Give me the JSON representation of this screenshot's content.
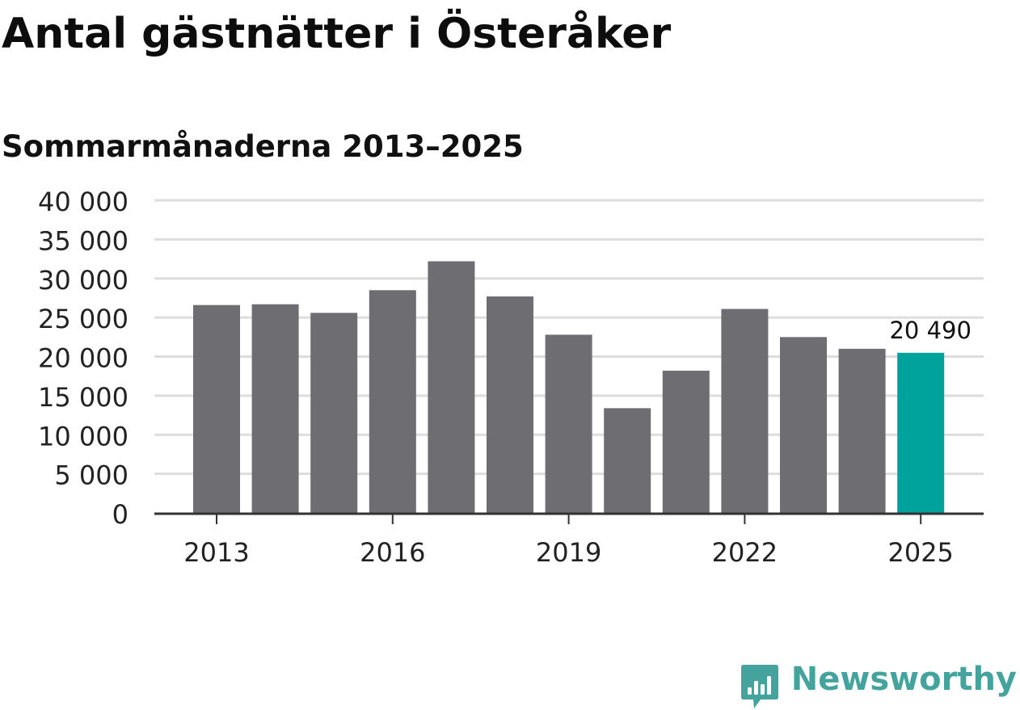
{
  "title": "Antal gästnätter i Österåker",
  "subtitle": "Sommarmånaderna 2013–2025",
  "logo": {
    "text": "Newsworthy",
    "icon": "newsworthy-chart-bubble-icon"
  },
  "colors": {
    "bar": "#6e6d72",
    "highlight": "#00a39c",
    "grid": "#dddddd",
    "axis": "#333333",
    "brand": "#45a39e"
  },
  "chart_data": {
    "type": "bar",
    "categories": [
      "2013",
      "2014",
      "2015",
      "2016",
      "2017",
      "2018",
      "2019",
      "2020",
      "2021",
      "2022",
      "2023",
      "2024",
      "2025"
    ],
    "values": [
      26600,
      26700,
      25600,
      28500,
      32200,
      27700,
      22800,
      13400,
      18200,
      26100,
      22500,
      21000,
      20490
    ],
    "highlight_category": "2025",
    "highlight_label": "20 490",
    "xticks": [
      "2013",
      "2016",
      "2019",
      "2022",
      "2025"
    ],
    "yticks": [
      {
        "value": 0,
        "label": "0"
      },
      {
        "value": 5000,
        "label": "5 000"
      },
      {
        "value": 10000,
        "label": "10 000"
      },
      {
        "value": 15000,
        "label": "15 000"
      },
      {
        "value": 20000,
        "label": "20 000"
      },
      {
        "value": 25000,
        "label": "25 000"
      },
      {
        "value": 30000,
        "label": "30 000"
      },
      {
        "value": 35000,
        "label": "35 000"
      },
      {
        "value": 40000,
        "label": "40 000"
      }
    ],
    "ylim": [
      0,
      40000
    ],
    "grid": true,
    "xlabel": "",
    "ylabel": ""
  }
}
